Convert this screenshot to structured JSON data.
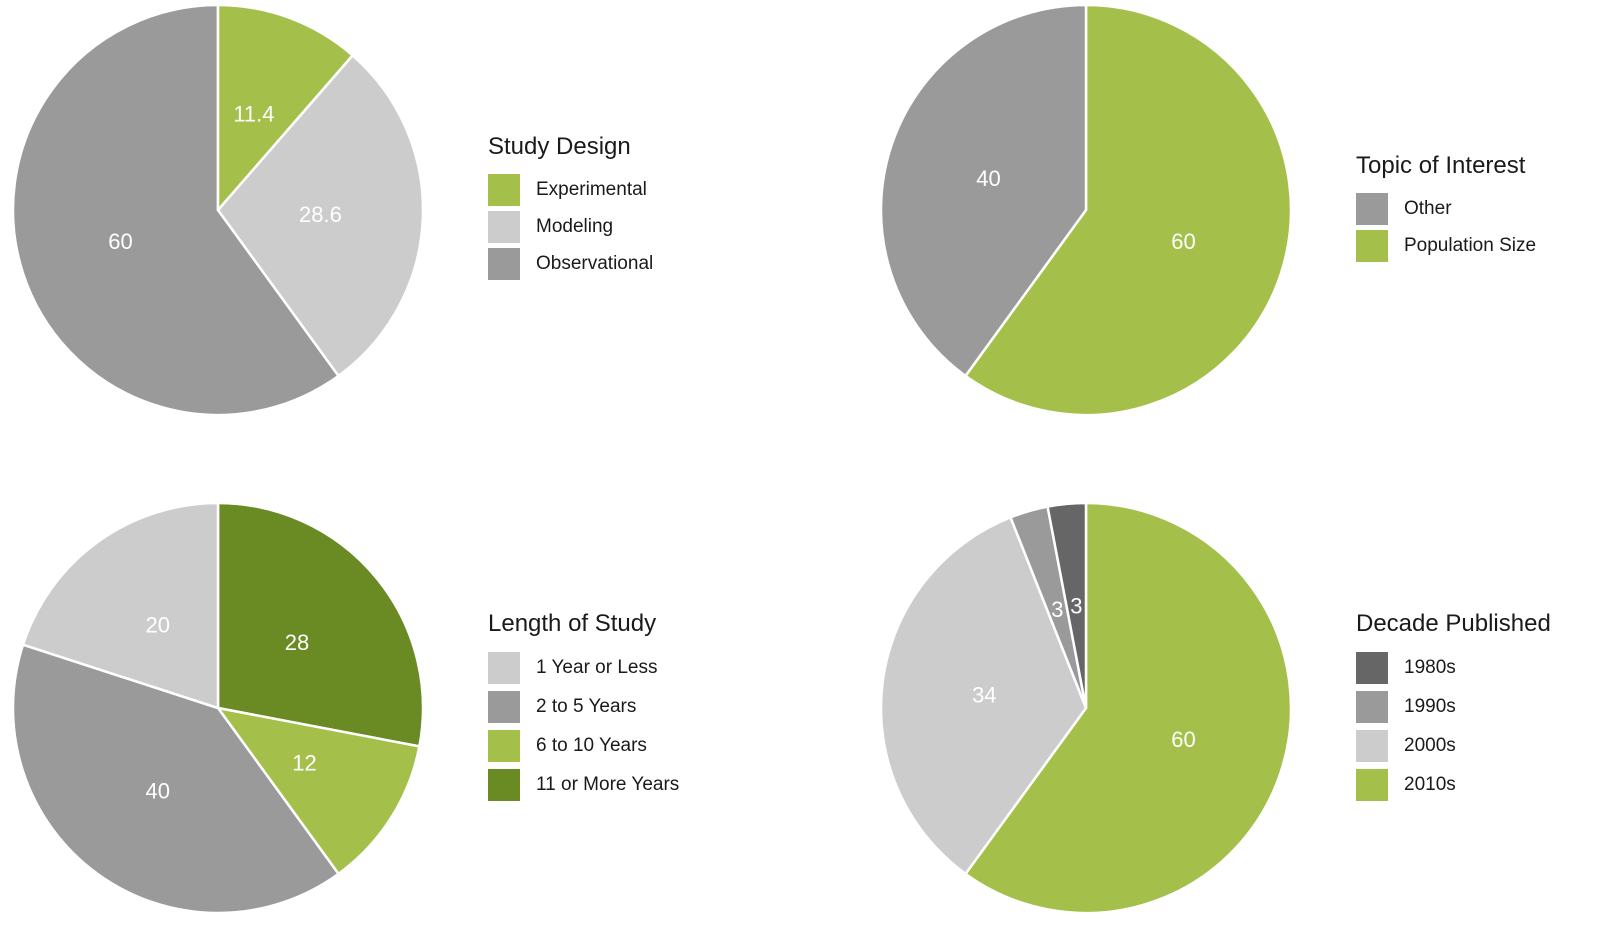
{
  "chart_data": [
    {
      "type": "pie",
      "title": "Study Design",
      "start_angle_deg": 0,
      "direction": "counterclockwise",
      "slices": [
        {
          "name": "Observational",
          "value": 60,
          "label": "60",
          "color": "#9a9a9a"
        },
        {
          "name": "Modeling",
          "value": 28.6,
          "label": "28.6",
          "color": "#cccccc"
        },
        {
          "name": "Experimental",
          "value": 11.4,
          "label": "11.4",
          "color": "#a5c04a"
        }
      ],
      "legend": {
        "title": "Study Design",
        "items": [
          {
            "label": "Experimental",
            "color": "#a5c04a"
          },
          {
            "label": "Modeling",
            "color": "#cccccc"
          },
          {
            "label": "Observational",
            "color": "#9a9a9a"
          }
        ]
      }
    },
    {
      "type": "pie",
      "title": "Topic of Interest",
      "start_angle_deg": 0,
      "direction": "clockwise",
      "slices": [
        {
          "name": "Population Size",
          "value": 60,
          "label": "60",
          "color": "#a5c04a"
        },
        {
          "name": "Other",
          "value": 40,
          "label": "40",
          "color": "#9a9a9a"
        }
      ],
      "legend": {
        "title": "Topic of Interest",
        "items": [
          {
            "label": "Other",
            "color": "#9a9a9a"
          },
          {
            "label": "Population Size",
            "color": "#a5c04a"
          }
        ]
      }
    },
    {
      "type": "pie",
      "title": "Length of Study",
      "start_angle_deg": 0,
      "direction": "clockwise",
      "slices": [
        {
          "name": "11 or More Years",
          "value": 28,
          "label": "28",
          "color": "#6a8a24"
        },
        {
          "name": "6 to 10 Years",
          "value": 12,
          "label": "12",
          "color": "#a5c04a"
        },
        {
          "name": "2 to 5 Years",
          "value": 40,
          "label": "40",
          "color": "#9a9a9a"
        },
        {
          "name": "1 Year or Less",
          "value": 20,
          "label": "20",
          "color": "#cccccc"
        }
      ],
      "legend": {
        "title": "Length of Study",
        "items": [
          {
            "label": "1 Year or Less",
            "color": "#cccccc"
          },
          {
            "label": "2 to 5 Years",
            "color": "#9a9a9a"
          },
          {
            "label": "6 to 10 Years",
            "color": "#a5c04a"
          },
          {
            "label": "11 or More Years",
            "color": "#6a8a24"
          }
        ]
      }
    },
    {
      "type": "pie",
      "title": "Decade Published",
      "start_angle_deg": 0,
      "direction": "clockwise",
      "slices": [
        {
          "name": "2010s",
          "value": 60,
          "label": "60",
          "color": "#a5c04a"
        },
        {
          "name": "2000s",
          "value": 34,
          "label": "34",
          "color": "#cccccc"
        },
        {
          "name": "1990s",
          "value": 3,
          "label": "3",
          "color": "#9a9a9a"
        },
        {
          "name": "1980s",
          "value": 3,
          "label": "3",
          "color": "#666666"
        }
      ],
      "legend": {
        "title": "Decade Published",
        "items": [
          {
            "label": "1980s",
            "color": "#666666"
          },
          {
            "label": "1990s",
            "color": "#9a9a9a"
          },
          {
            "label": "2000s",
            "color": "#cccccc"
          },
          {
            "label": "2010s",
            "color": "#a5c04a"
          }
        ]
      }
    }
  ]
}
